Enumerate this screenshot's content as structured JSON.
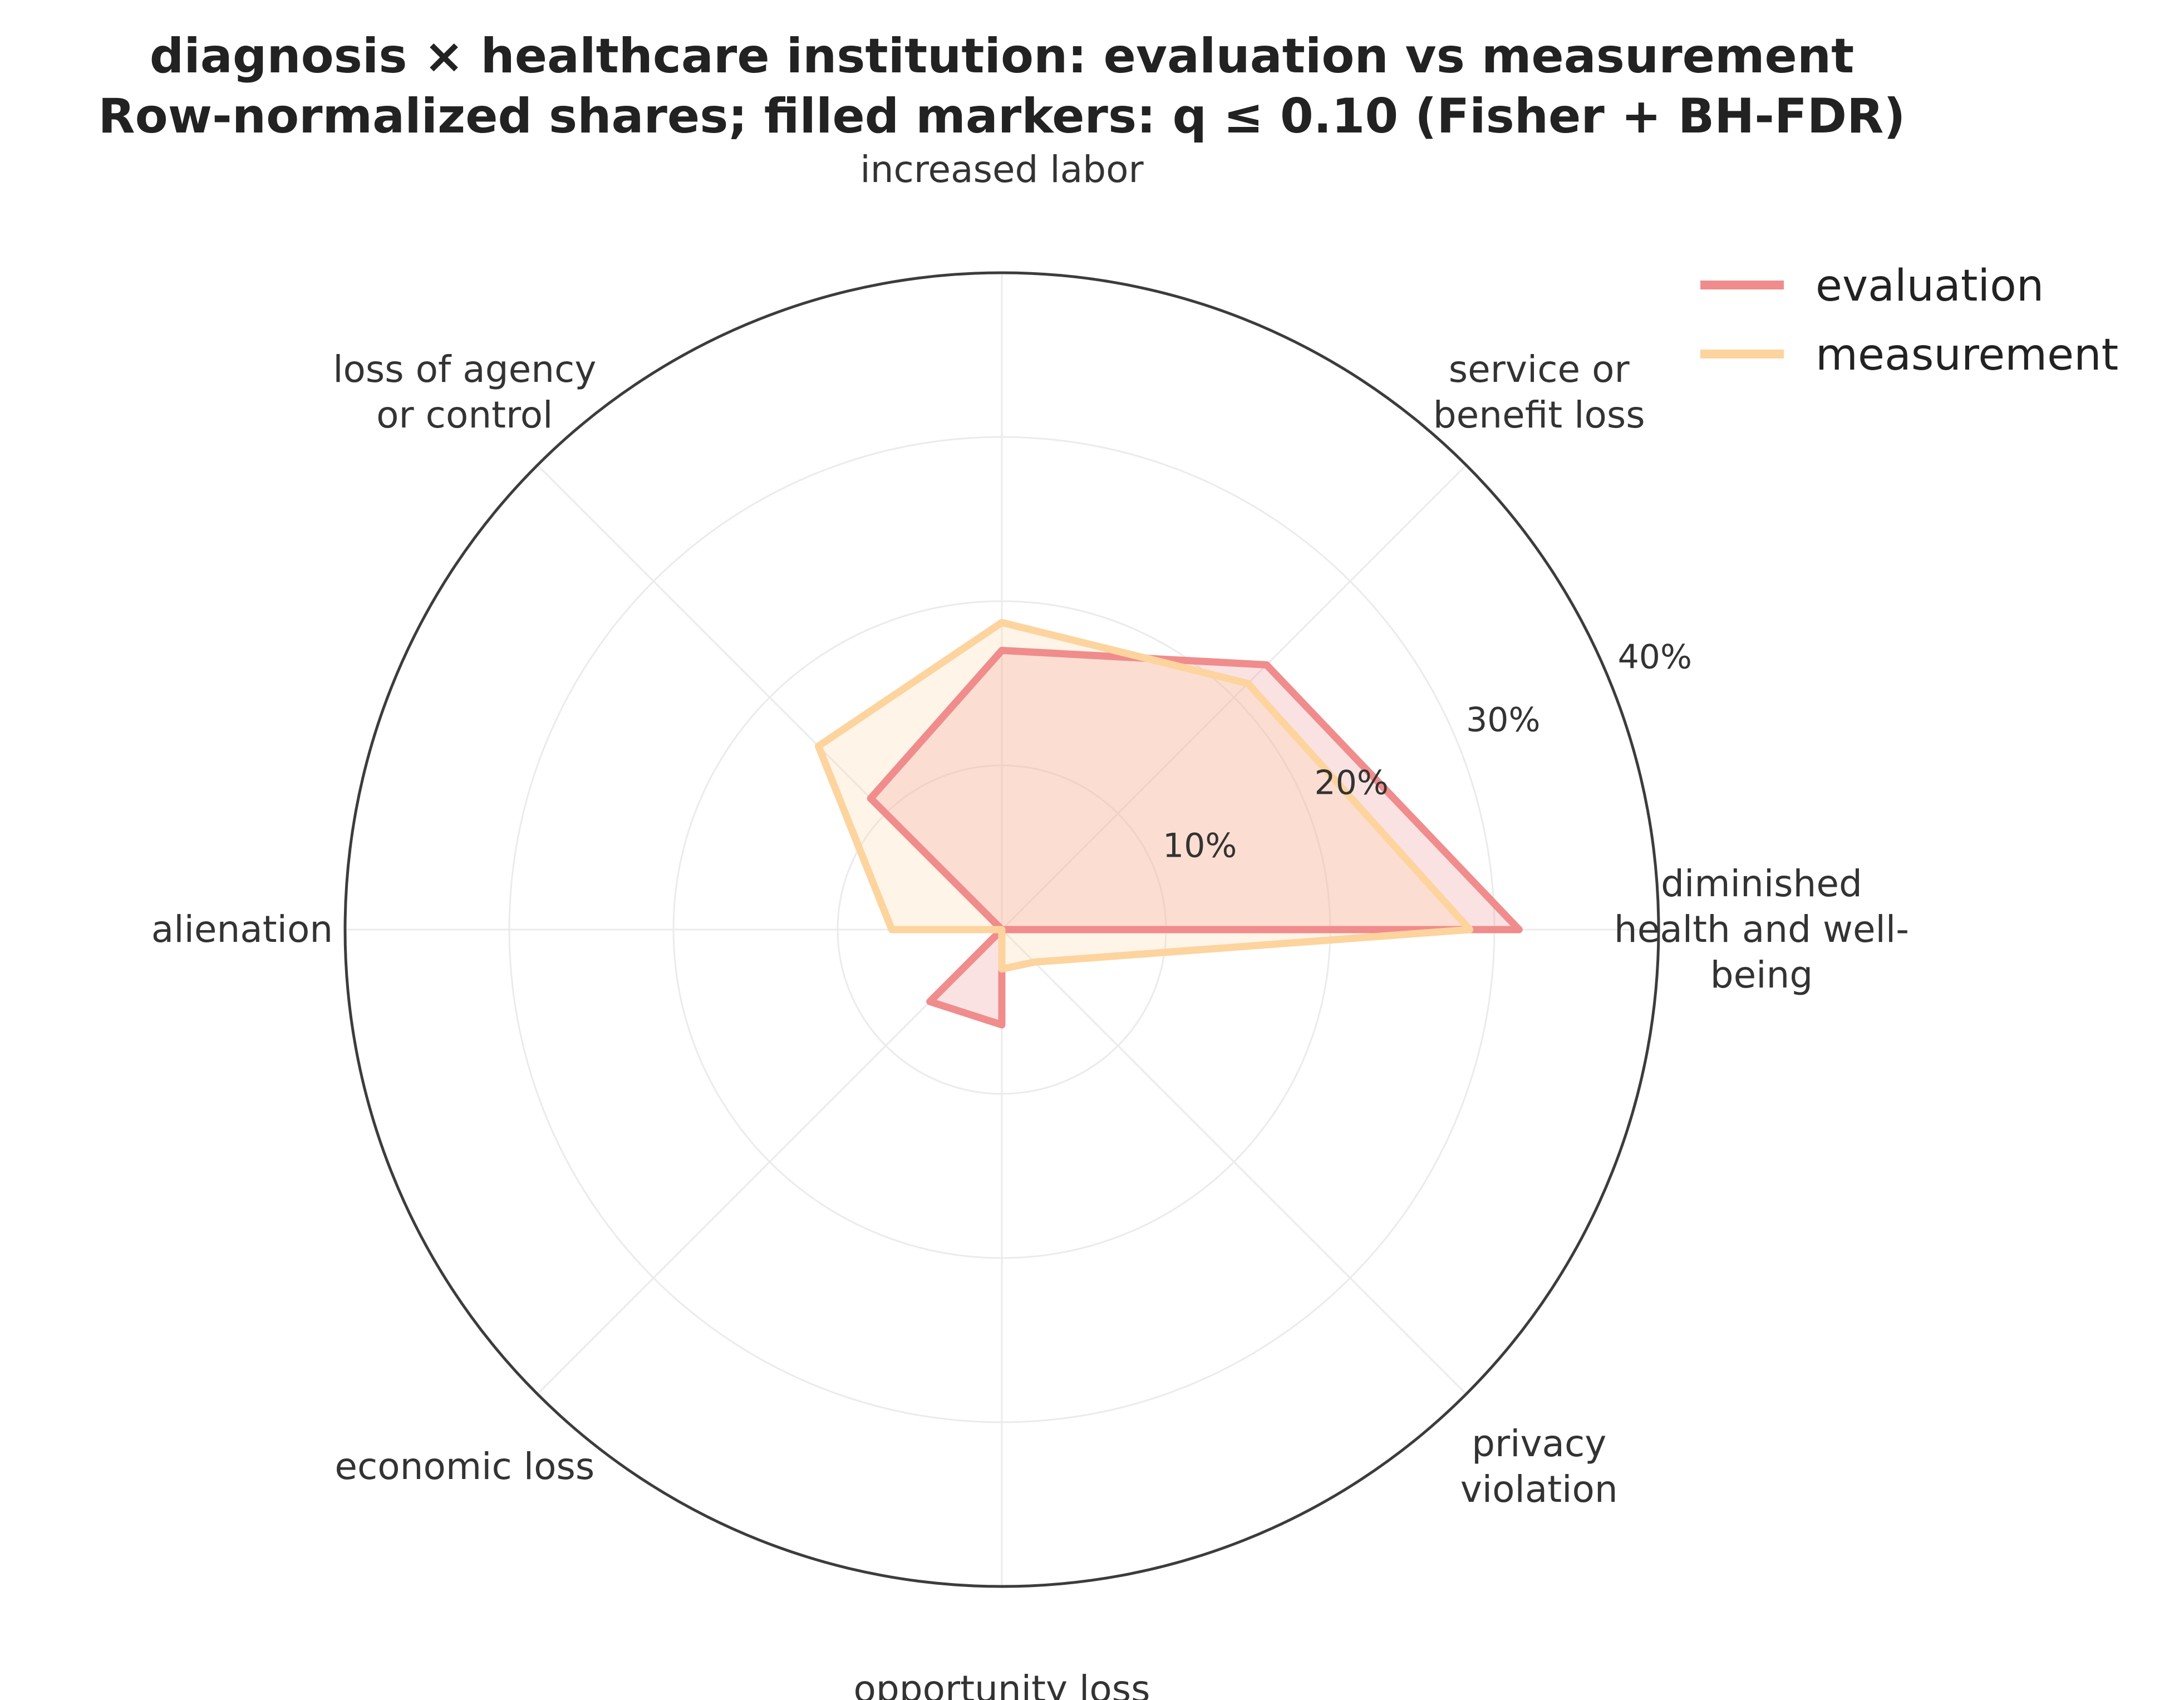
{
  "chart_data": {
    "type": "radar",
    "title_lines": [
      "diagnosis × healthcare institution: evaluation vs measurement",
      "Row-normalized shares; filled markers: q ≤ 0.10 (Fisher + BH-FDR)"
    ],
    "categories": [
      [
        "diminished",
        "health and well-",
        "being"
      ],
      [
        "service or",
        "benefit loss"
      ],
      [
        "increased labor"
      ],
      [
        "loss of agency",
        "or control"
      ],
      [
        "alienation"
      ],
      [
        "economic loss"
      ],
      [
        "opportunity loss"
      ],
      [
        "privacy",
        "violation"
      ]
    ],
    "r_ticks": [
      10,
      20,
      30,
      40
    ],
    "r_tick_labels": [
      "10%",
      "20%",
      "30%",
      "40%"
    ],
    "rlim": [
      0,
      40
    ],
    "series": [
      {
        "name": "evaluation",
        "color": "#f08c8c",
        "values": [
          31.5,
          22.8,
          17.0,
          11.3,
          0.0,
          6.2,
          5.8,
          0.0
        ]
      },
      {
        "name": "measurement",
        "color": "#fdd49e",
        "values": [
          28.5,
          21.2,
          18.7,
          15.8,
          6.7,
          0.0,
          2.4,
          2.8
        ]
      }
    ],
    "legend_position": "top-right"
  }
}
